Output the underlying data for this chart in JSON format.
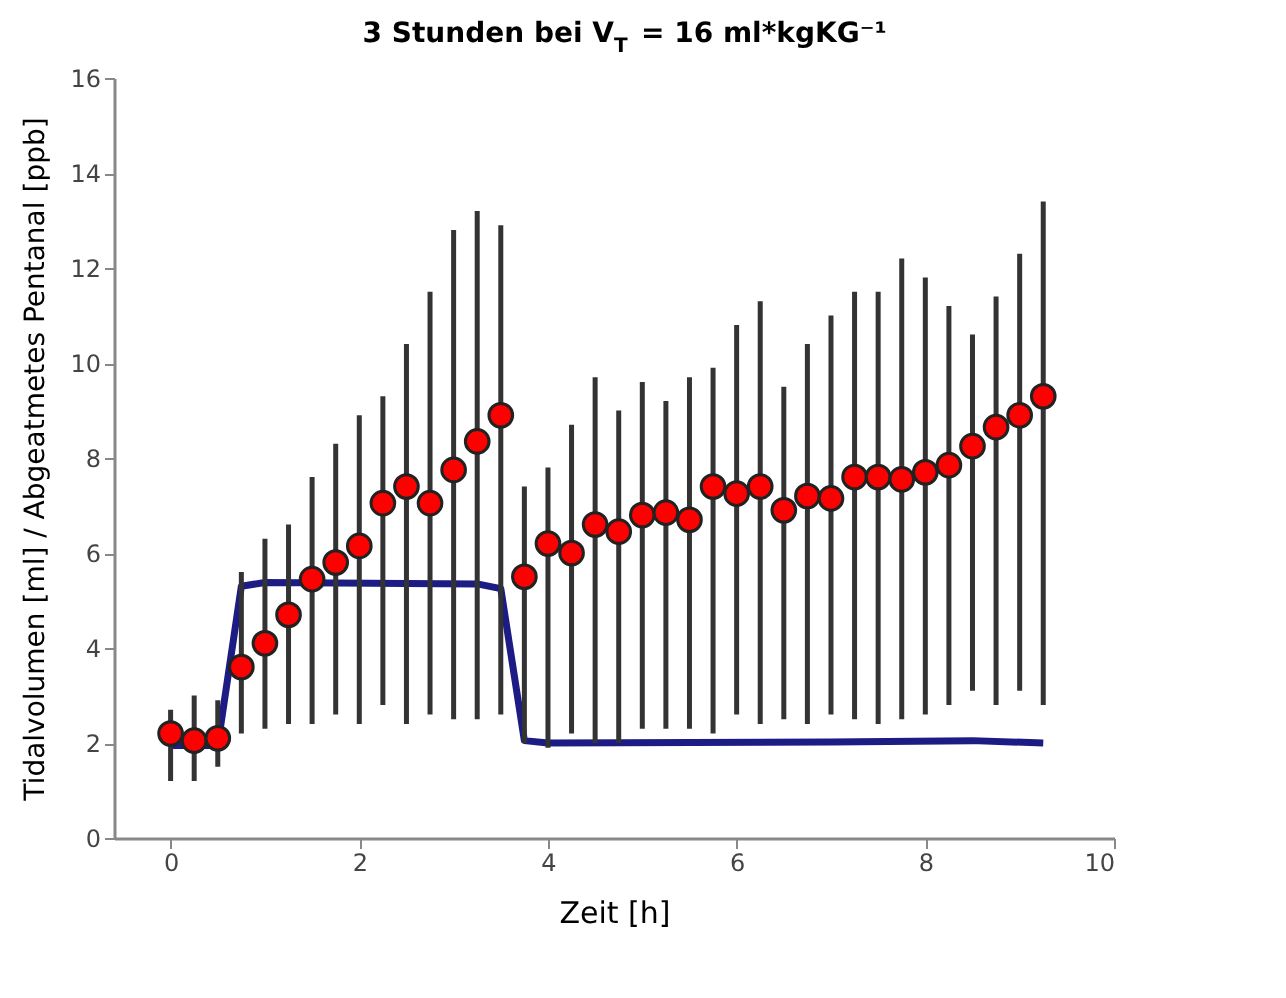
{
  "chart_data": {
    "type": "scatter",
    "title": "3 Stunden bei V$_{T}$ = 16 ml*kgKG⁻¹",
    "xlabel": "Zeit [h]",
    "ylabel": "Tidalvolumen [ml] / Abgeatmetes Pentanal [ppb]",
    "xlim": [
      -0.6,
      10
    ],
    "ylim": [
      0,
      16
    ],
    "xticks": [
      0,
      2,
      4,
      6,
      8,
      10
    ],
    "yticks": [
      0,
      2,
      4,
      6,
      8,
      10,
      12,
      14,
      16
    ],
    "grid": false,
    "series": [
      {
        "type": "line",
        "color": "#1c1c84",
        "line_style": "solid",
        "marker": "none",
        "x": [
          0,
          0.5,
          0.75,
          1,
          3.25,
          3.5,
          3.75,
          4,
          7,
          8.5,
          9.25
        ],
        "values": [
          1.95,
          1.95,
          5.3,
          5.38,
          5.35,
          5.25,
          2.05,
          2.0,
          2.02,
          2.05,
          2.0
        ]
      },
      {
        "color": "#ff0000",
        "marker": "circle",
        "x": [
          0,
          0.25,
          0.5,
          0.75,
          1,
          1.25,
          1.5,
          1.75,
          2,
          2.25,
          2.5,
          2.75,
          3,
          3.25,
          3.5,
          3.75,
          4,
          4.25,
          4.5,
          4.75,
          5,
          5.25,
          5.5,
          5.75,
          6,
          6.25,
          6.5,
          6.75,
          7,
          7.25,
          7.5,
          7.75,
          8,
          8.25,
          8.5,
          8.75,
          9,
          9.25
        ],
        "values": [
          2.2,
          2.05,
          2.1,
          3.6,
          4.1,
          4.7,
          5.45,
          5.8,
          6.15,
          7.05,
          7.4,
          7.05,
          7.75,
          8.35,
          8.9,
          5.5,
          6.2,
          6.0,
          6.6,
          6.45,
          6.8,
          6.85,
          6.7,
          7.4,
          7.25,
          7.4,
          6.9,
          7.2,
          7.15,
          7.6,
          7.6,
          7.55,
          7.7,
          7.85,
          8.25,
          8.65,
          8.9,
          9.3
        ],
        "errors": [
          [
            1.2,
            2.7
          ],
          [
            1.2,
            3.0
          ],
          [
            1.5,
            2.9
          ],
          [
            2.2,
            5.6
          ],
          [
            2.3,
            6.3
          ],
          [
            2.4,
            6.6
          ],
          [
            2.4,
            7.6
          ],
          [
            2.6,
            8.3
          ],
          [
            2.4,
            8.9
          ],
          [
            2.8,
            9.3
          ],
          [
            2.4,
            10.4
          ],
          [
            2.6,
            11.5
          ],
          [
            2.5,
            12.8
          ],
          [
            2.5,
            13.2
          ],
          [
            2.6,
            12.9
          ],
          [
            2.0,
            7.4
          ],
          [
            1.9,
            7.8
          ],
          [
            2.2,
            8.7
          ],
          [
            2.0,
            9.7
          ],
          [
            2.0,
            9.0
          ],
          [
            2.3,
            9.6
          ],
          [
            2.3,
            9.2
          ],
          [
            2.3,
            9.7
          ],
          [
            2.2,
            9.9
          ],
          [
            2.6,
            10.8
          ],
          [
            2.4,
            11.3
          ],
          [
            2.5,
            9.5
          ],
          [
            2.4,
            10.4
          ],
          [
            2.6,
            11.0
          ],
          [
            2.5,
            11.5
          ],
          [
            2.4,
            11.5
          ],
          [
            2.5,
            12.2
          ],
          [
            2.6,
            11.8
          ],
          [
            2.8,
            11.2
          ],
          [
            3.1,
            10.6
          ],
          [
            2.8,
            11.4
          ],
          [
            3.1,
            12.3
          ],
          [
            2.8,
            13.4
          ]
        ]
      }
    ]
  }
}
